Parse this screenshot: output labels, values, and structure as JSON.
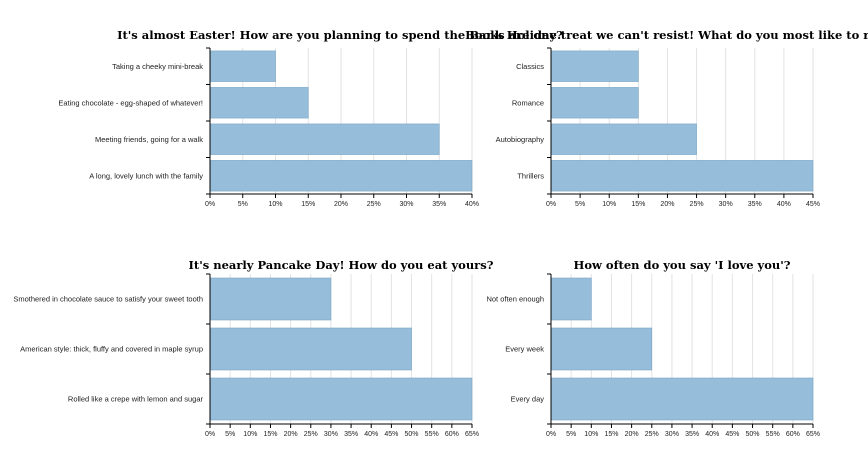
{
  "chart_data": [
    {
      "type": "bar",
      "orientation": "horizontal",
      "title": "It's almost Easter! How are you planning to spend the Bank Holiday?",
      "categories": [
        "Taking a cheeky mini-break",
        "Eating chocolate - egg-shaped of whatever!",
        "Meeting friends, going for a walk",
        "A long, lovely lunch with the family"
      ],
      "values": [
        10,
        15,
        35,
        40
      ],
      "xlim": [
        0,
        40
      ],
      "ticks": [
        "0%",
        "5%",
        "10%",
        "15%",
        "20%",
        "25%",
        "30%",
        "35%",
        "40%"
      ],
      "grid": true,
      "bar_color": "#96bdd9"
    },
    {
      "type": "bar",
      "orientation": "horizontal",
      "title": "Books are one treat we can't resist! What do you most like to read?",
      "categories": [
        "Classics",
        "Romance",
        "Autobiography",
        "Thrillers"
      ],
      "values": [
        15,
        15,
        25,
        45
      ],
      "xlim": [
        0,
        45
      ],
      "ticks": [
        "0%",
        "5%",
        "10%",
        "15%",
        "20%",
        "25%",
        "30%",
        "35%",
        "40%",
        "45%"
      ],
      "grid": true,
      "bar_color": "#96bdd9"
    },
    {
      "type": "bar",
      "orientation": "horizontal",
      "title": "It's nearly Pancake Day! How do you eat yours?",
      "categories": [
        "Smothered in chocolate sauce to satisfy your sweet tooth",
        "American style: thick, fluffy and covered in maple syrup",
        "Rolled like a crepe with lemon and sugar"
      ],
      "values": [
        30,
        50,
        65
      ],
      "xlim": [
        0,
        65
      ],
      "ticks": [
        "0%",
        "5%",
        "10%",
        "15%",
        "20%",
        "25%",
        "30%",
        "35%",
        "40%",
        "45%",
        "50%",
        "55%",
        "60%",
        "65%"
      ],
      "grid": true,
      "bar_color": "#96bdd9"
    },
    {
      "type": "bar",
      "orientation": "horizontal",
      "title": "How often do you say 'I love you'?",
      "categories": [
        "Not often enough",
        "Every week",
        "Every day"
      ],
      "values": [
        10,
        25,
        65
      ],
      "xlim": [
        0,
        65
      ],
      "ticks": [
        "0%",
        "5%",
        "10%",
        "15%",
        "20%",
        "25%",
        "30%",
        "35%",
        "40%",
        "45%",
        "50%",
        "55%",
        "60%",
        "65%"
      ],
      "grid": true,
      "bar_color": "#96bdd9"
    }
  ]
}
